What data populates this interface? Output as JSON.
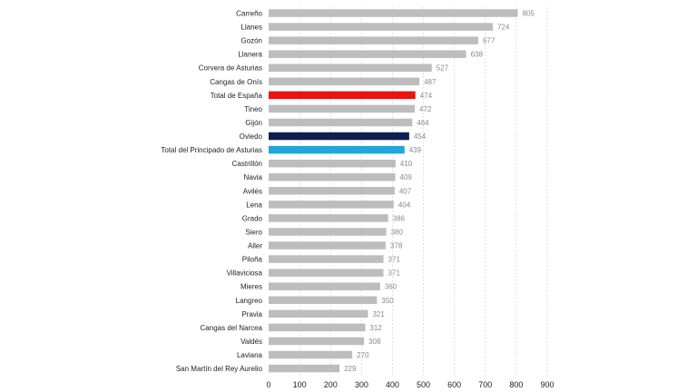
{
  "chart_data": {
    "type": "bar",
    "orientation": "horizontal",
    "categories": [
      "Carreño",
      "Llanes",
      "Gozón",
      "Llanera",
      "Corvera de Asturias",
      "Cangas de Onís",
      "Total de España",
      "Tineo",
      "Gijón",
      "Oviedo",
      "Total del Principado de Asturias",
      "Castrillón",
      "Navia",
      "Avilés",
      "Lena",
      "Grado",
      "Siero",
      "Aller",
      "Piloña",
      "Villaviciosa",
      "Mieres",
      "Langreo",
      "Pravia",
      "Cangas del Narcea",
      "Valdés",
      "Laviana",
      "San Martín del Rey Aurelio"
    ],
    "values": [
      805,
      724,
      677,
      638,
      527,
      487,
      474,
      472,
      464,
      454,
      439,
      410,
      409,
      407,
      404,
      386,
      380,
      378,
      371,
      371,
      360,
      350,
      321,
      312,
      308,
      270,
      229
    ],
    "colors": [
      "#bdbdbd",
      "#bdbdbd",
      "#bdbdbd",
      "#bdbdbd",
      "#bdbdbd",
      "#bdbdbd",
      "#ee1111",
      "#bdbdbd",
      "#bdbdbd",
      "#0d1f4f",
      "#1aa7dd",
      "#bdbdbd",
      "#bdbdbd",
      "#bdbdbd",
      "#bdbdbd",
      "#bdbdbd",
      "#bdbdbd",
      "#bdbdbd",
      "#bdbdbd",
      "#bdbdbd",
      "#bdbdbd",
      "#bdbdbd",
      "#bdbdbd",
      "#bdbdbd",
      "#bdbdbd",
      "#bdbdbd",
      "#bdbdbd"
    ],
    "xlim": [
      0,
      900
    ],
    "xticks": [
      0,
      100,
      200,
      300,
      400,
      500,
      600,
      700,
      800,
      900
    ],
    "grid": "vertical dashed",
    "title": "",
    "xlabel": "",
    "ylabel": ""
  }
}
